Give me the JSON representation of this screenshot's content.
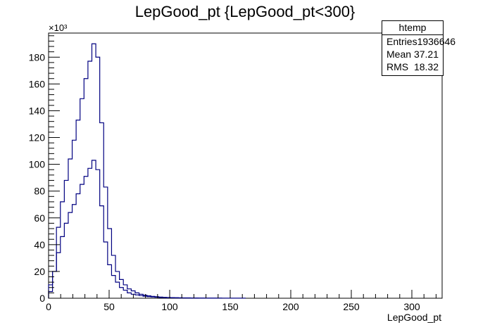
{
  "chart_data": {
    "type": "histogram",
    "title": "LepGood_pt {LepGood_pt<300}",
    "xlabel": "LepGood_pt",
    "ylabel": "",
    "y_multiplier_label": "×10³",
    "xlim": [
      0,
      325
    ],
    "ylim": [
      0,
      198
    ],
    "bin_width": 3.25,
    "x_ticks": [
      0,
      50,
      100,
      150,
      200,
      250,
      300
    ],
    "y_ticks": [
      0,
      20,
      40,
      60,
      80,
      100,
      120,
      140,
      160,
      180
    ],
    "line_color": "#000080",
    "series": [
      {
        "values": [
          5,
          20,
          53,
          72,
          88,
          104,
          118,
          133,
          149,
          164,
          177,
          190,
          180,
          131,
          83,
          52,
          32,
          20,
          14,
          10,
          7,
          5.5,
          4,
          3,
          2.3,
          1.8,
          1.4,
          1.1,
          0.9,
          0.7,
          0.55,
          0.45,
          0.4,
          0.35,
          0.3,
          0.25,
          0.2,
          0.2,
          0.15,
          0.15,
          0.1,
          0.1,
          0.1,
          0.1,
          0.1,
          0.05,
          0.05,
          0.05,
          0.05,
          0.05
        ]
      },
      {
        "values": [
          10,
          20,
          34,
          46,
          56,
          64,
          70,
          78,
          85,
          91,
          97,
          103,
          96,
          69,
          42,
          25,
          17,
          12,
          8,
          6,
          4,
          3,
          2.5,
          2,
          1.5,
          1.2,
          1,
          0.8,
          0.6,
          0.5,
          0.4,
          0.3,
          0.25,
          0.2,
          0.2,
          0.15,
          0.15,
          0.1,
          0.1,
          0.1,
          0.05,
          0.05,
          0.05,
          0.05
        ]
      }
    ],
    "stats_box": {
      "name": "htemp",
      "entries_label": "Entries",
      "entries_value": "1936646",
      "mean_label": "Mean",
      "mean_value": "37.21",
      "rms_label": "RMS",
      "rms_value": "18.32"
    }
  }
}
